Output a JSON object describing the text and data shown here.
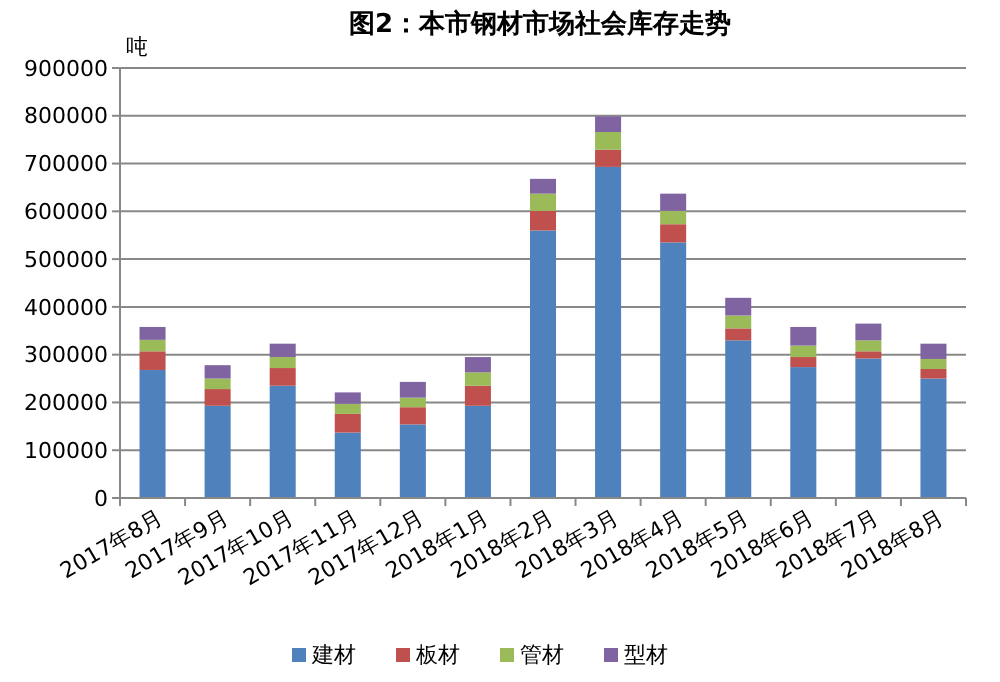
{
  "chart_data": {
    "type": "bar",
    "title": "图2：本市钢材市场社会库存走势",
    "ylabel": "吨",
    "stacked": true,
    "categories": [
      "2017年8月",
      "2017年9月",
      "2017年10月",
      "2017年11月",
      "2017年12月",
      "2018年1月",
      "2018年2月",
      "2018年3月",
      "2018年4月",
      "2018年5月",
      "2018年6月",
      "2018年7月",
      "2018年8月"
    ],
    "series": [
      {
        "name": "建材",
        "color": "#4f81bd",
        "values": [
          268000,
          193000,
          235000,
          137000,
          154000,
          193000,
          560000,
          693000,
          535000,
          330000,
          274000,
          292000,
          250000
        ]
      },
      {
        "name": "板材",
        "color": "#c0504d",
        "values": [
          39000,
          35000,
          37000,
          39000,
          36000,
          42000,
          41000,
          36000,
          38000,
          25000,
          21000,
          15000,
          20000
        ]
      },
      {
        "name": "管材",
        "color": "#9bbb59",
        "values": [
          24000,
          22000,
          23000,
          21000,
          20000,
          28000,
          36000,
          37000,
          28000,
          27000,
          24000,
          23000,
          21000
        ]
      },
      {
        "name": "型材",
        "color": "#8064a2",
        "values": [
          27000,
          28000,
          28000,
          24000,
          33000,
          32000,
          31000,
          33000,
          36000,
          37000,
          39000,
          35000,
          32000
        ]
      }
    ],
    "ylim": [
      0,
      900000
    ],
    "yticks": [
      0,
      100000,
      200000,
      300000,
      400000,
      500000,
      600000,
      700000,
      800000,
      900000
    ],
    "grid": "y",
    "legend": "bottom"
  }
}
